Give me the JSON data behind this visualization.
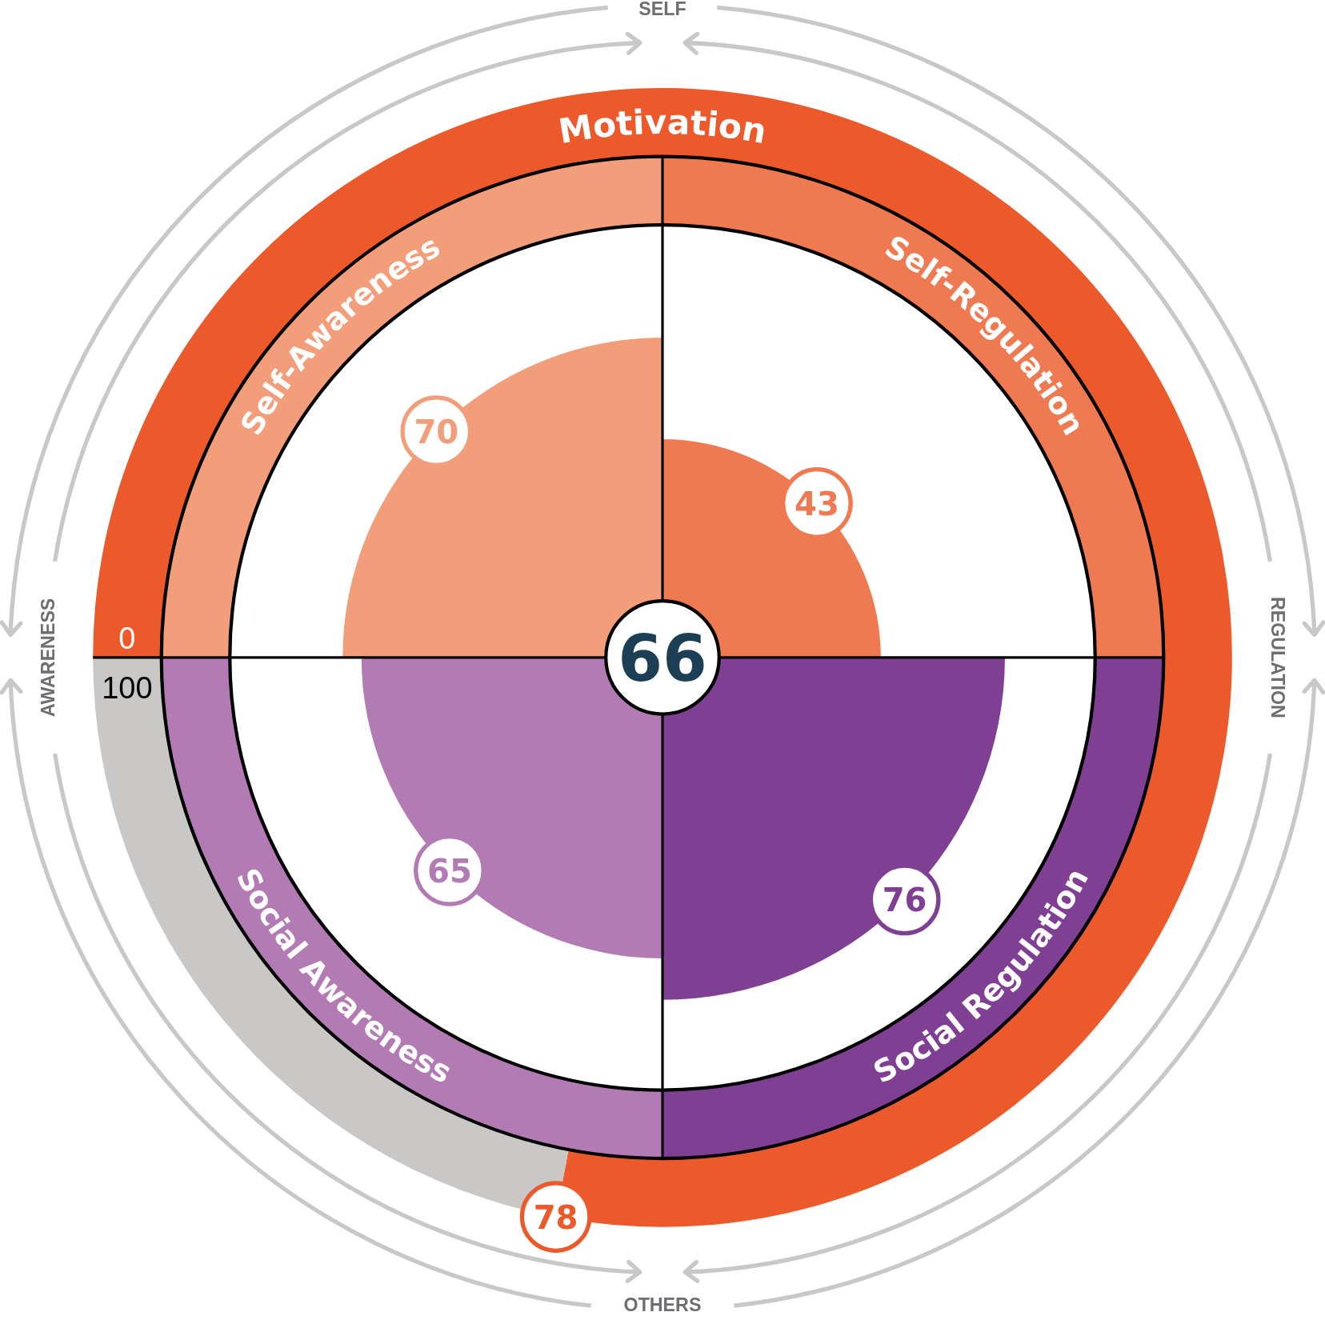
{
  "chart_data": [
    {
      "type": "other",
      "categories": [
        "Self-Awareness",
        "Self-Regulation",
        "Social Awareness",
        "Social Regulation"
      ],
      "values": [
        70,
        43,
        65,
        76
      ],
      "colors": [
        "#f29e7a",
        "#ef7a52",
        "#b27bb4",
        "#7f3f93"
      ],
      "data_labels": true,
      "annotations": [
        "66",
        "SELF",
        "REGULATION",
        "OTHERS",
        "AWARENESS"
      ]
    },
    {
      "type": "donut",
      "categories": [
        "Motivation",
        null
      ],
      "values": [
        78,
        22
      ],
      "colors": [
        "#ec5a2c",
        "#c9c8c7"
      ],
      "value_labels": [
        "78",
        null
      ],
      "annotations": [
        "0",
        "100"
      ]
    }
  ]
}
